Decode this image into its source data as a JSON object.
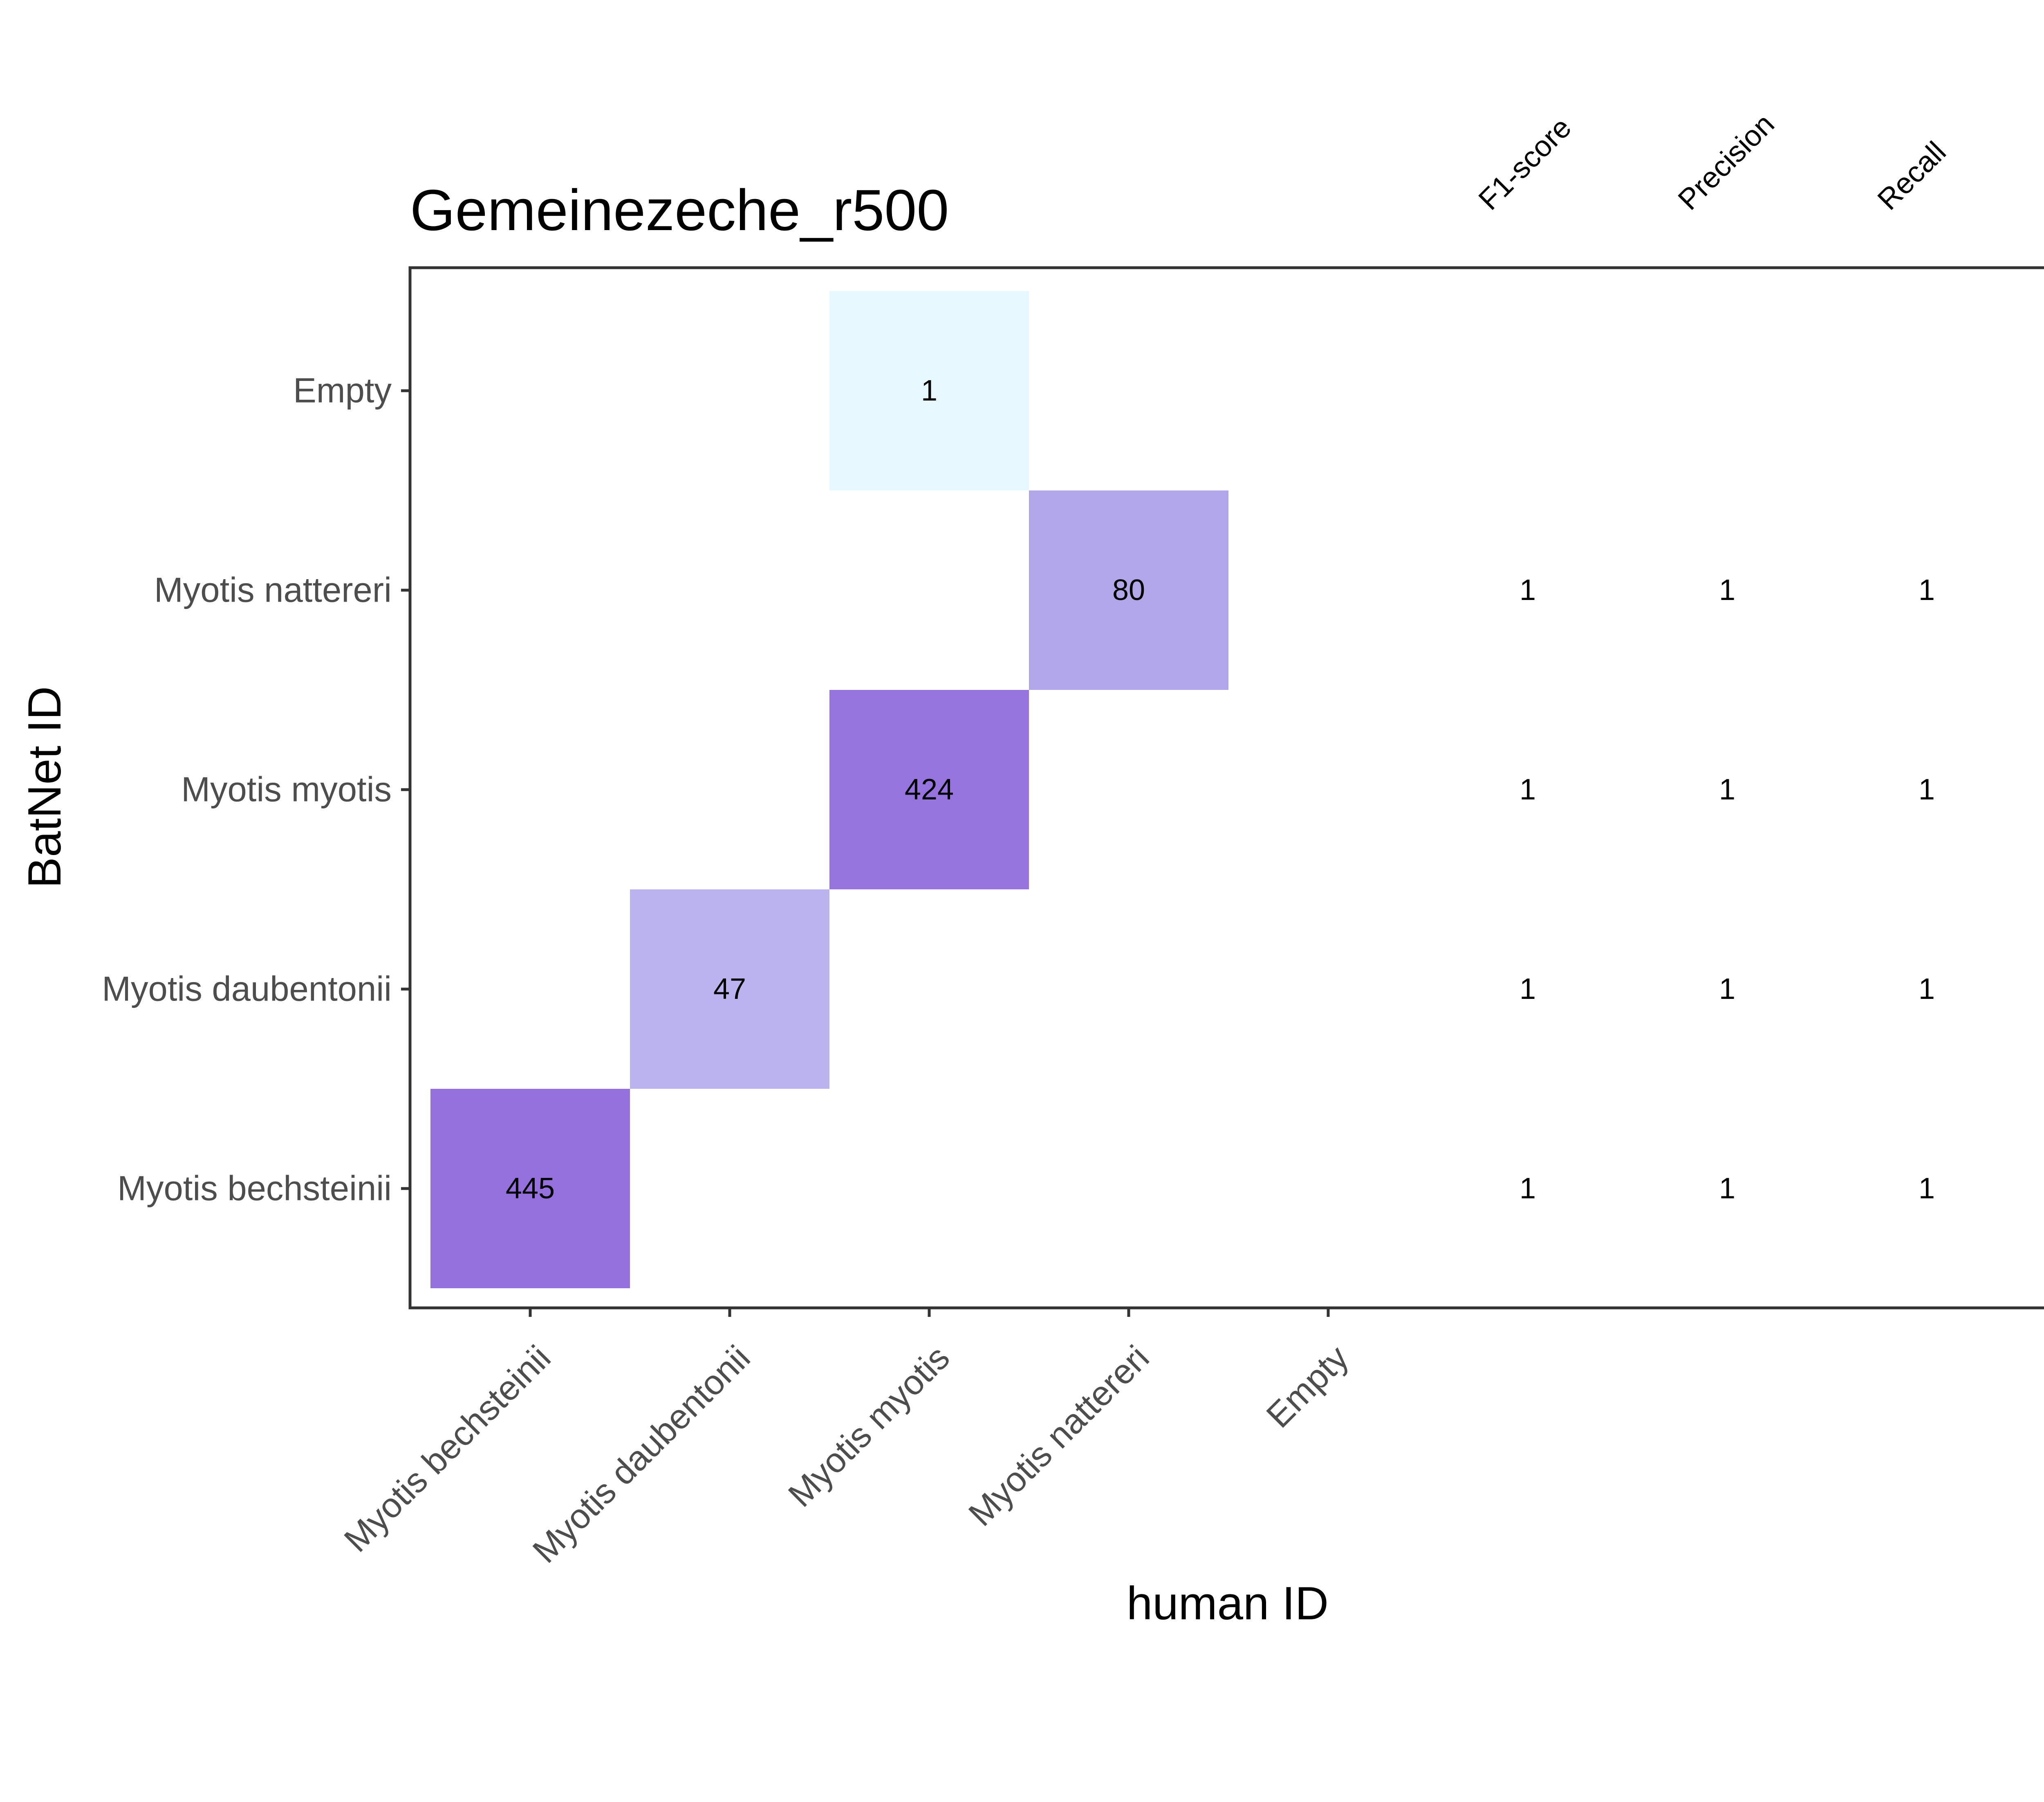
{
  "chart_data": {
    "type": "heatmap",
    "title": "Gemeinezeche_r500",
    "xlabel": "human ID",
    "ylabel": "BatNet ID",
    "x_categories": [
      "Myotis bechsteinii",
      "Myotis daubentonii",
      "Myotis myotis",
      "Myotis nattereri",
      "Empty"
    ],
    "y_categories": [
      "Myotis bechsteinii",
      "Myotis daubentonii",
      "Myotis myotis",
      "Myotis nattereri",
      "Empty"
    ],
    "cells": [
      {
        "x": "Myotis bechsteinii",
        "y": "Myotis bechsteinii",
        "value": 445,
        "color": "#9370db"
      },
      {
        "x": "Myotis daubentonii",
        "y": "Myotis daubentonii",
        "value": 47,
        "color": "#bab4ee"
      },
      {
        "x": "Myotis myotis",
        "y": "Myotis myotis",
        "value": 424,
        "color": "#9574dd"
      },
      {
        "x": "Myotis nattereri",
        "y": "Myotis nattereri",
        "value": 80,
        "color": "#b1a6e8"
      },
      {
        "x": "Myotis myotis",
        "y": "Empty",
        "value": 1,
        "color": "#e6f7fd"
      }
    ],
    "metric_headers": [
      "F1-score",
      "Precision",
      "Recall"
    ],
    "metrics": [
      {
        "y": "Myotis nattereri",
        "values": [
          1,
          1,
          1
        ]
      },
      {
        "y": "Myotis myotis",
        "values": [
          1,
          1,
          1
        ]
      },
      {
        "y": "Myotis daubentonii",
        "values": [
          1,
          1,
          1
        ]
      },
      {
        "y": "Myotis bechsteinii",
        "values": [
          1,
          1,
          1
        ]
      }
    ],
    "grid": false,
    "legend": "none"
  }
}
